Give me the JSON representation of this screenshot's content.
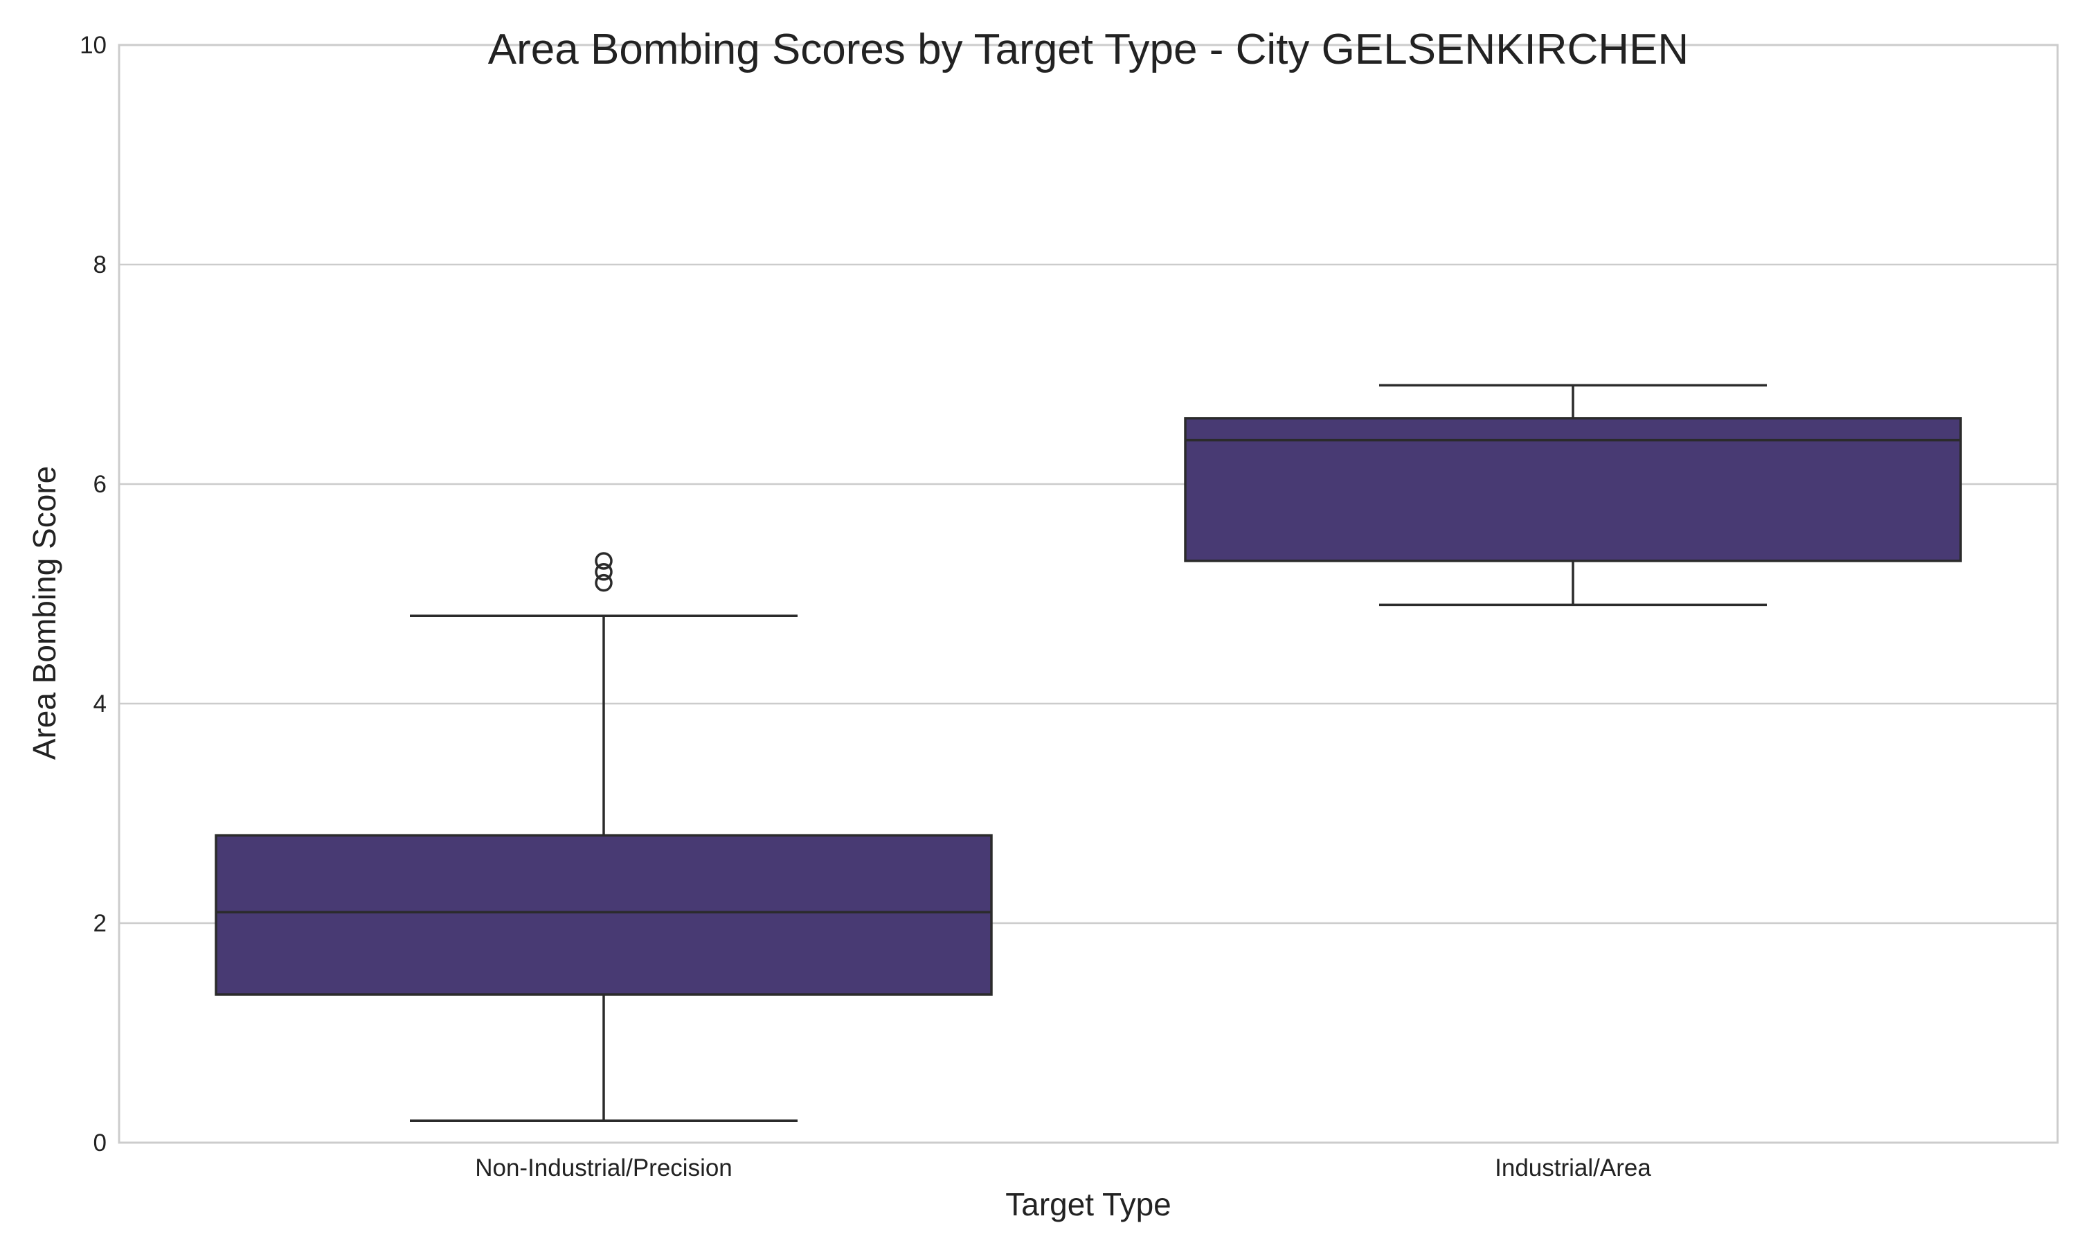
{
  "chart_data": {
    "type": "box",
    "title": "Area Bombing Scores by Target Type - City GELSENKIRCHEN",
    "xlabel": "Target Type",
    "ylabel": "Area Bombing Score",
    "ylim": [
      0,
      10
    ],
    "yticks": [
      0,
      2,
      4,
      6,
      8,
      10
    ],
    "grid": true,
    "categories": [
      "Non-Industrial/Precision",
      "Industrial/Area"
    ],
    "boxes": [
      {
        "category": "Non-Industrial/Precision",
        "whisker_low": 0.2,
        "q1": 1.35,
        "median": 2.1,
        "q3": 2.8,
        "whisker_high": 4.8,
        "outliers": [
          5.1,
          5.2,
          5.3
        ]
      },
      {
        "category": "Industrial/Area",
        "whisker_low": 4.9,
        "q1": 5.3,
        "median": 6.4,
        "q3": 6.6,
        "whisker_high": 6.9,
        "outliers": []
      }
    ],
    "colors": {
      "box_fill": "#483a73",
      "box_edge": "#2b2b2b",
      "grid": "#cccccc",
      "frame": "#cccccc"
    }
  }
}
